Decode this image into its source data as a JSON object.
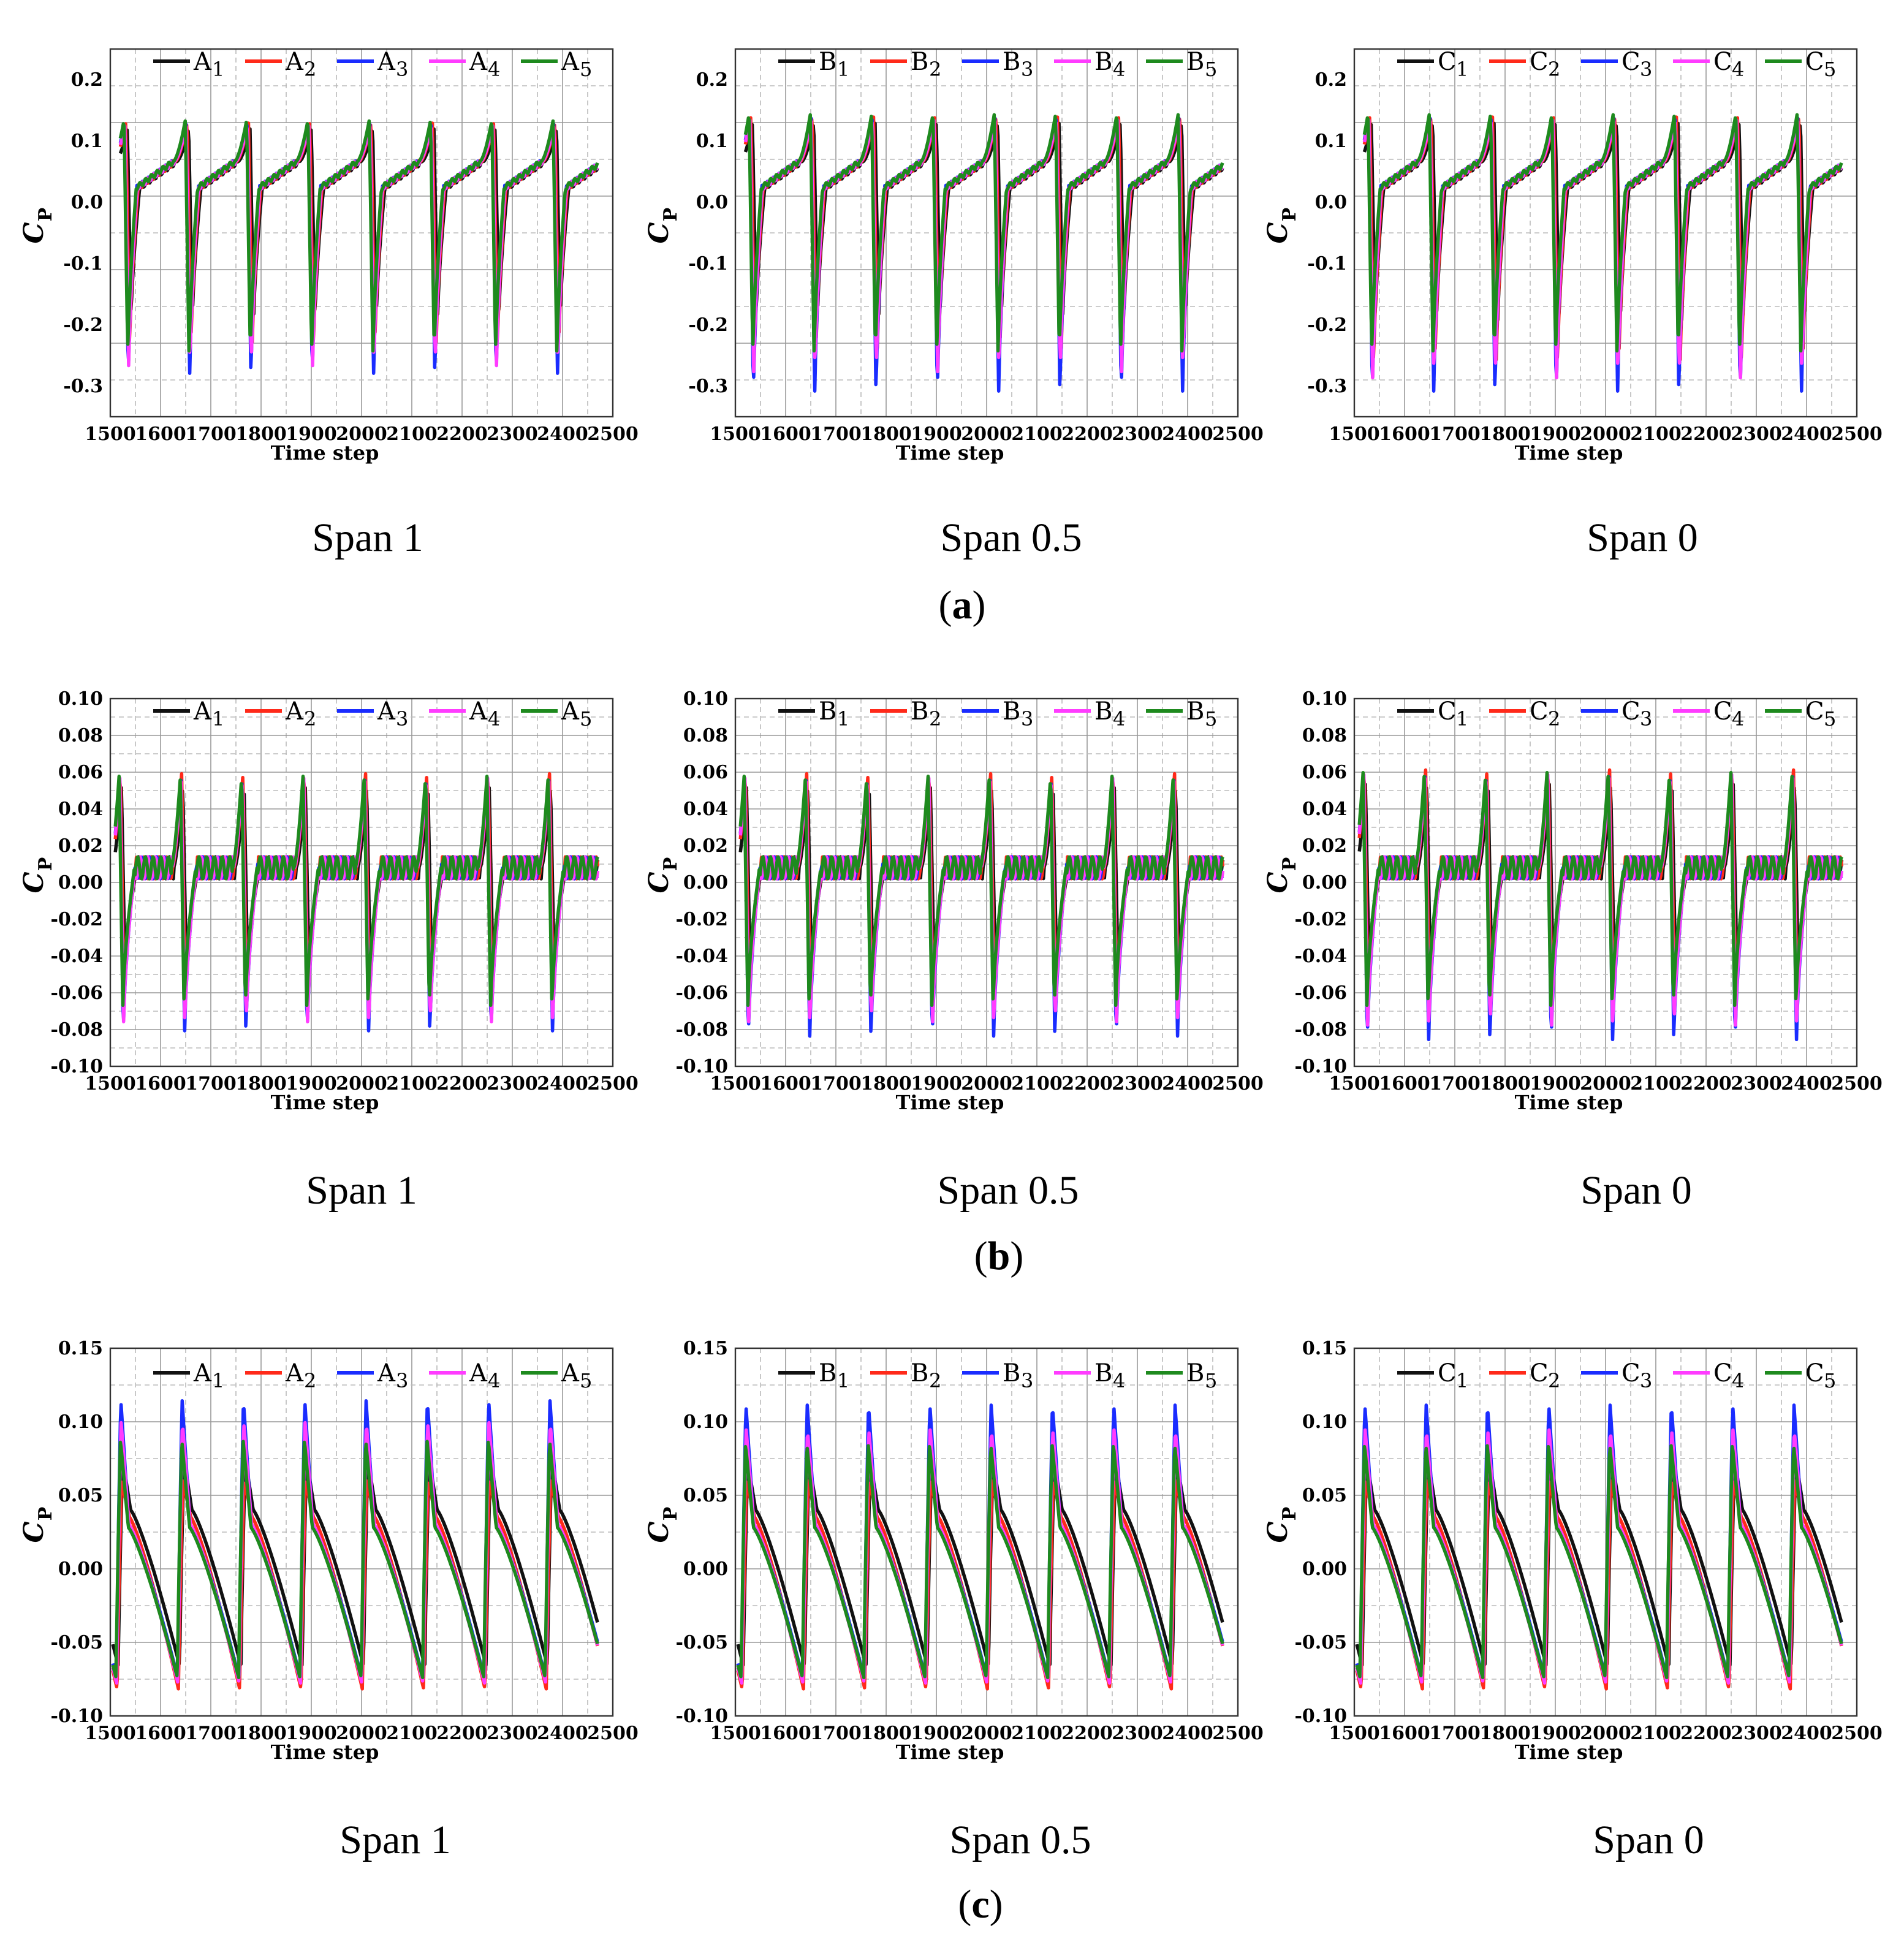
{
  "row_labels": [
    "a",
    "b",
    "c"
  ],
  "series_colors": [
    "#111111",
    "#ff2a1a",
    "#1a2cff",
    "#ff3cff",
    "#1e8a1e"
  ],
  "chart_data": [
    {
      "type": "line",
      "row": "a",
      "title": "Span 1",
      "xlabel": "Time step",
      "ylabel": "C",
      "ylabel_sub": "P",
      "xlim": [
        1500,
        2500
      ],
      "ylim": [
        -0.35,
        0.25
      ],
      "xticks": [
        "1500",
        "1600",
        "1700",
        "1800",
        "1900",
        "2000",
        "2100",
        "2200",
        "2300",
        "2400",
        "2500"
      ],
      "yticks": [
        "0.2",
        "0.1",
        "0.0",
        "-0.1",
        "-0.2",
        "-0.3"
      ],
      "legend": [
        {
          "prefix": "A",
          "sub": "1"
        },
        {
          "prefix": "A",
          "sub": "2"
        },
        {
          "prefix": "A",
          "sub": "3"
        },
        {
          "prefix": "A",
          "sub": "4"
        },
        {
          "prefix": "A",
          "sub": "5"
        }
      ],
      "period": 122,
      "start": 1520,
      "end": 2470,
      "peak": 0.13,
      "trough_min": [
        -0.19,
        -0.24,
        -0.29,
        -0.27,
        -0.25
      ],
      "plateau": 0.06
    },
    {
      "type": "line",
      "row": "a",
      "title": "Span 0.5",
      "xlabel": "Time step",
      "ylabel": "C",
      "ylabel_sub": "P",
      "xlim": [
        1500,
        2500
      ],
      "ylim": [
        -0.35,
        0.25
      ],
      "xticks": [
        "1500",
        "1600",
        "1700",
        "1800",
        "1900",
        "2000",
        "2100",
        "2200",
        "2300",
        "2400",
        "2500"
      ],
      "yticks": [
        "0.2",
        "0.1",
        "0.0",
        "-0.1",
        "-0.2",
        "-0.3"
      ],
      "legend": [
        {
          "prefix": "B",
          "sub": "1"
        },
        {
          "prefix": "B",
          "sub": "2"
        },
        {
          "prefix": "B",
          "sub": "3"
        },
        {
          "prefix": "B",
          "sub": "4"
        },
        {
          "prefix": "B",
          "sub": "5"
        }
      ],
      "period": 122,
      "start": 1520,
      "end": 2470,
      "peak": 0.14,
      "trough_min": [
        -0.19,
        -0.25,
        -0.32,
        -0.28,
        -0.25
      ],
      "plateau": 0.06
    },
    {
      "type": "line",
      "row": "a",
      "title": "Span 0",
      "xlabel": "Time step",
      "ylabel": "C",
      "ylabel_sub": "P",
      "xlim": [
        1500,
        2500
      ],
      "ylim": [
        -0.35,
        0.25
      ],
      "xticks": [
        "1500",
        "1600",
        "1700",
        "1800",
        "1900",
        "2000",
        "2100",
        "2200",
        "2300",
        "2400",
        "2500"
      ],
      "yticks": [
        "0.2",
        "0.1",
        "0.0",
        "-0.1",
        "-0.2",
        "-0.3"
      ],
      "legend": [
        {
          "prefix": "C",
          "sub": "1"
        },
        {
          "prefix": "C",
          "sub": "2"
        },
        {
          "prefix": "C",
          "sub": "3"
        },
        {
          "prefix": "C",
          "sub": "4"
        },
        {
          "prefix": "C",
          "sub": "5"
        }
      ],
      "period": 122,
      "start": 1520,
      "end": 2470,
      "peak": 0.14,
      "trough_min": [
        -0.2,
        -0.27,
        -0.32,
        -0.29,
        -0.25
      ],
      "plateau": 0.06
    },
    {
      "type": "line",
      "row": "b",
      "title": "Span 1",
      "xlabel": "Time step",
      "ylabel": "C",
      "ylabel_sub": "P",
      "xlim": [
        1500,
        2500
      ],
      "ylim": [
        -0.1,
        0.1
      ],
      "xticks": [
        "1500",
        "1600",
        "1700",
        "1800",
        "1900",
        "2000",
        "2100",
        "2200",
        "2300",
        "2400",
        "2500"
      ],
      "yticks": [
        "0.10",
        "0.08",
        "0.06",
        "0.04",
        "0.02",
        "0.00",
        "-0.02",
        "-0.04",
        "-0.06",
        "-0.08",
        "-0.10"
      ],
      "legend": [
        {
          "prefix": "A",
          "sub": "1"
        },
        {
          "prefix": "A",
          "sub": "2"
        },
        {
          "prefix": "A",
          "sub": "3"
        },
        {
          "prefix": "A",
          "sub": "4"
        },
        {
          "prefix": "A",
          "sub": "5"
        }
      ],
      "period": 122,
      "start": 1510,
      "end": 2470,
      "peak": 0.058,
      "trough_min": [
        -0.05,
        -0.065,
        -0.085,
        -0.08,
        -0.07
      ],
      "plateau": 0.008
    },
    {
      "type": "line",
      "row": "b",
      "title": "Span 0.5",
      "xlabel": "Time step",
      "ylabel": "C",
      "ylabel_sub": "P",
      "xlim": [
        1500,
        2500
      ],
      "ylim": [
        -0.1,
        0.1
      ],
      "xticks": [
        "1500",
        "1600",
        "1700",
        "1800",
        "1900",
        "2000",
        "2100",
        "2200",
        "2300",
        "2400",
        "2500"
      ],
      "yticks": [
        "0.10",
        "0.08",
        "0.06",
        "0.04",
        "0.02",
        "0.00",
        "-0.02",
        "-0.04",
        "-0.06",
        "-0.08",
        "-0.10"
      ],
      "legend": [
        {
          "prefix": "B",
          "sub": "1"
        },
        {
          "prefix": "B",
          "sub": "2"
        },
        {
          "prefix": "B",
          "sub": "3"
        },
        {
          "prefix": "B",
          "sub": "4"
        },
        {
          "prefix": "B",
          "sub": "5"
        }
      ],
      "period": 122,
      "start": 1510,
      "end": 2470,
      "peak": 0.058,
      "trough_min": [
        -0.05,
        -0.066,
        -0.088,
        -0.08,
        -0.07
      ],
      "plateau": 0.008
    },
    {
      "type": "line",
      "row": "b",
      "title": "Span 0",
      "xlabel": "Time step",
      "ylabel": "C",
      "ylabel_sub": "P",
      "xlim": [
        1500,
        2500
      ],
      "ylim": [
        -0.1,
        0.1
      ],
      "xticks": [
        "1500",
        "1600",
        "1700",
        "1800",
        "1900",
        "2000",
        "2100",
        "2200",
        "2300",
        "2400",
        "2500"
      ],
      "yticks": [
        "0.10",
        "0.08",
        "0.06",
        "0.04",
        "0.02",
        "0.00",
        "-0.02",
        "-0.04",
        "-0.06",
        "-0.08",
        "-0.10"
      ],
      "legend": [
        {
          "prefix": "C",
          "sub": "1"
        },
        {
          "prefix": "C",
          "sub": "2"
        },
        {
          "prefix": "C",
          "sub": "3"
        },
        {
          "prefix": "C",
          "sub": "4"
        },
        {
          "prefix": "C",
          "sub": "5"
        }
      ],
      "period": 122,
      "start": 1510,
      "end": 2470,
      "peak": 0.06,
      "trough_min": [
        -0.05,
        -0.067,
        -0.09,
        -0.082,
        -0.07
      ],
      "plateau": 0.008
    },
    {
      "type": "line",
      "row": "c",
      "title": "Span 1",
      "xlabel": "Time step",
      "ylabel": "C",
      "ylabel_sub": "P",
      "xlim": [
        1500,
        2500
      ],
      "ylim": [
        -0.1,
        0.15
      ],
      "xticks": [
        "1500",
        "1600",
        "1700",
        "1800",
        "1900",
        "2000",
        "2100",
        "2200",
        "2300",
        "2400",
        "2500"
      ],
      "yticks": [
        "0.15",
        "0.10",
        "0.05",
        "0.00",
        "-0.05",
        "-0.10"
      ],
      "legend": [
        {
          "prefix": "A",
          "sub": "1"
        },
        {
          "prefix": "A",
          "sub": "2"
        },
        {
          "prefix": "A",
          "sub": "3"
        },
        {
          "prefix": "A",
          "sub": "4"
        },
        {
          "prefix": "A",
          "sub": "5"
        }
      ],
      "period": 122,
      "start": 1505,
      "end": 2470,
      "peaks": [
        0.075,
        0.06,
        0.115,
        0.1,
        0.088
      ],
      "trough": -0.078
    },
    {
      "type": "line",
      "row": "c",
      "title": "Span 0.5",
      "xlabel": "Time step",
      "ylabel": "C",
      "ylabel_sub": "P",
      "xlim": [
        1500,
        2500
      ],
      "ylim": [
        -0.1,
        0.15
      ],
      "xticks": [
        "1500",
        "1600",
        "1700",
        "1800",
        "1900",
        "2000",
        "2100",
        "2200",
        "2300",
        "2400",
        "2500"
      ],
      "yticks": [
        "0.15",
        "0.10",
        "0.05",
        "0.00",
        "-0.05",
        "-0.10"
      ],
      "legend": [
        {
          "prefix": "B",
          "sub": "1"
        },
        {
          "prefix": "B",
          "sub": "2"
        },
        {
          "prefix": "B",
          "sub": "3"
        },
        {
          "prefix": "B",
          "sub": "4"
        },
        {
          "prefix": "B",
          "sub": "5"
        }
      ],
      "period": 122,
      "start": 1505,
      "end": 2470,
      "peaks": [
        0.073,
        0.06,
        0.112,
        0.095,
        0.085
      ],
      "trough": -0.078
    },
    {
      "type": "line",
      "row": "c",
      "title": "Span 0",
      "xlabel": "Time step",
      "ylabel": "C",
      "ylabel_sub": "P",
      "xlim": [
        1500,
        2500
      ],
      "ylim": [
        -0.1,
        0.15
      ],
      "xticks": [
        "1500",
        "1600",
        "1700",
        "1800",
        "1900",
        "2000",
        "2100",
        "2200",
        "2300",
        "2400",
        "2500"
      ],
      "yticks": [
        "0.15",
        "0.10",
        "0.05",
        "0.00",
        "-0.05",
        "-0.10"
      ],
      "legend": [
        {
          "prefix": "C",
          "sub": "1"
        },
        {
          "prefix": "C",
          "sub": "2"
        },
        {
          "prefix": "C",
          "sub": "3"
        },
        {
          "prefix": "C",
          "sub": "4"
        },
        {
          "prefix": "C",
          "sub": "5"
        }
      ],
      "period": 122,
      "start": 1505,
      "end": 2470,
      "peaks": [
        0.075,
        0.06,
        0.112,
        0.095,
        0.085
      ],
      "trough": -0.078
    }
  ]
}
